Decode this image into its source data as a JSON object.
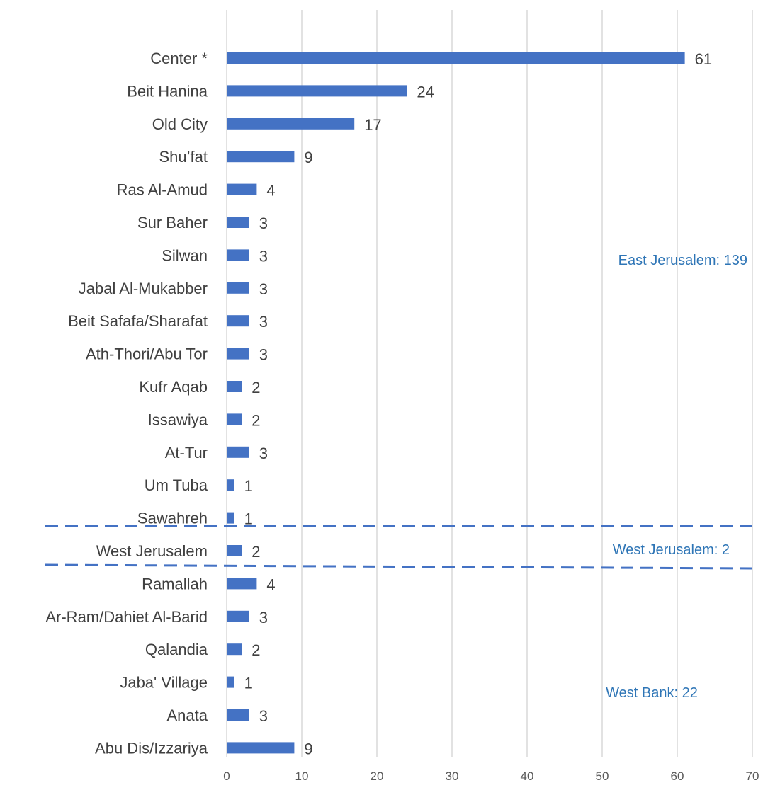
{
  "chart_data": {
    "type": "bar",
    "orientation": "horizontal",
    "title": "",
    "xlabel": "",
    "ylabel": "",
    "xlim": [
      0,
      70
    ],
    "x_ticks": [
      "0",
      "10",
      "20",
      "30",
      "40",
      "50",
      "60",
      "70"
    ],
    "grid": "vertical",
    "categories": [
      "Center *",
      "Beit Hanina",
      "Old City",
      "Shu’fat",
      "Ras Al-Amud",
      "Sur Baher",
      "Silwan",
      "Jabal Al-Mukabber",
      "Beit Safafa/Sharafat",
      "Ath-Thori/Abu Tor",
      "Kufr Aqab",
      "Issawiya",
      "At-Tur",
      "Um Tuba",
      "Sawahreh",
      "West Jerusalem",
      "Ramallah",
      "Ar-Ram/Dahiet Al-Barid",
      "Qalandia",
      "Jaba' Village",
      "Anata",
      "Abu Dis/Izzariya"
    ],
    "values": [
      61,
      24,
      17,
      9,
      4,
      3,
      3,
      3,
      3,
      3,
      2,
      2,
      3,
      1,
      1,
      2,
      4,
      3,
      2,
      1,
      3,
      9
    ],
    "value_labels": [
      "61",
      "24",
      "17",
      "9",
      "4",
      "3",
      "3",
      "3",
      "3",
      "3",
      "2",
      "2",
      "3",
      "1",
      "1",
      "2",
      "4",
      "3",
      "2",
      "1",
      "3",
      "9"
    ],
    "bar_color": "#4472C4",
    "annotations": [
      {
        "text": "East Jerusalem: 139",
        "color": "#2E75B6"
      },
      {
        "text": "West Jerusalem: 2",
        "color": "#2E75B6"
      },
      {
        "text": "West Bank: 22",
        "color": "#2E75B6"
      }
    ],
    "separator_color": "#4472C4"
  }
}
